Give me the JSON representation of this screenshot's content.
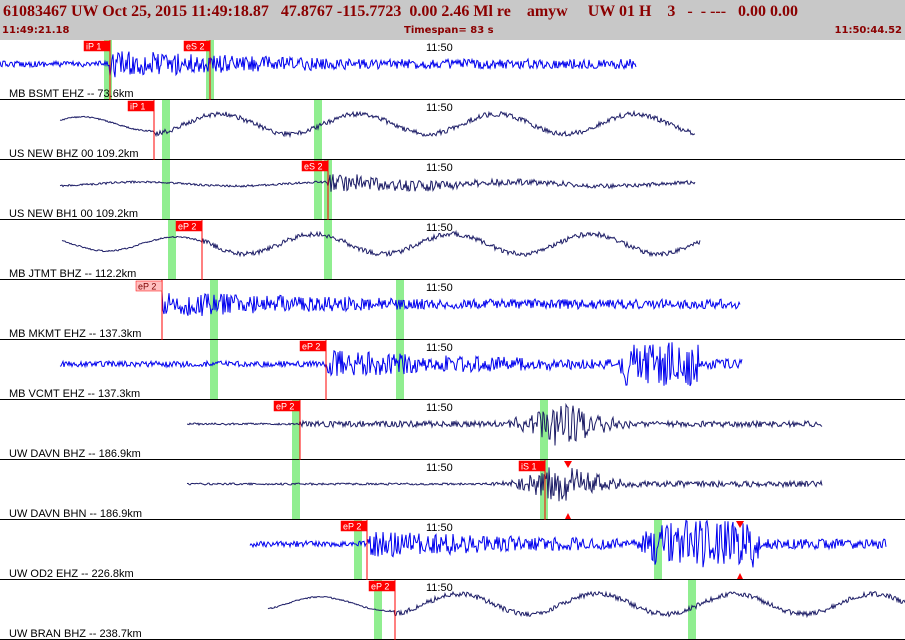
{
  "header": {
    "title": "61083467 UW Oct 25, 2015 11:49:18.87   47.8767 -115.7723  0.00 2.46 Ml re    amyw     UW 01 H    3   -  - ---   0.00 0.00",
    "start_time": "11:49:21.18",
    "timespan": "Timespan=  83 s",
    "end_time": "11:50:44.52"
  },
  "colors": {
    "trace_blue": "#0000ee",
    "trace_navy": "#1c1c66",
    "pick_red": "#ff0000",
    "pick_pink": "#ffc0c0",
    "window_green": "#90ee90",
    "header_bg": "#c8c8c8",
    "header_text": "#8b0000"
  },
  "panels": [
    {
      "label": "MB BSMT EHZ -- 73.6km",
      "time_mark": "11:50",
      "trace_color": "blue",
      "signal": "noisy",
      "picks": [
        {
          "label": "iP 1",
          "style": "red"
        },
        {
          "label": "eS 2",
          "style": "red"
        }
      ],
      "markers": []
    },
    {
      "label": "US NEW BHZ 00 109.2km",
      "time_mark": "11:50",
      "trace_color": "navy",
      "signal": "long-period",
      "picks": [
        {
          "label": "iP 1",
          "style": "red"
        }
      ],
      "markers": []
    },
    {
      "label": "US NEW BH1 00 109.2km",
      "time_mark": "11:50",
      "trace_color": "navy",
      "signal": "quiet",
      "picks": [
        {
          "label": "eS 2",
          "style": "red"
        }
      ],
      "markers": []
    },
    {
      "label": "MB JTMT BHZ -- 112.2km",
      "time_mark": "11:50",
      "trace_color": "navy",
      "signal": "long-period",
      "picks": [
        {
          "label": "eP 2",
          "style": "red"
        }
      ],
      "markers": []
    },
    {
      "label": "MB MKMT EHZ -- 137.3km",
      "time_mark": "11:50",
      "trace_color": "blue",
      "signal": "noisy",
      "picks": [
        {
          "label": "eP 2",
          "style": "pink"
        }
      ],
      "markers": []
    },
    {
      "label": "MB VCMT EHZ -- 137.3km",
      "time_mark": "11:50",
      "trace_color": "blue",
      "signal": "noisy",
      "picks": [
        {
          "label": "eP 2",
          "style": "red"
        }
      ],
      "markers": []
    },
    {
      "label": "UW DAVN BHZ -- 186.9km",
      "time_mark": "11:50",
      "trace_color": "navy",
      "signal": "burst",
      "picks": [
        {
          "label": "eP 2",
          "style": "red"
        }
      ],
      "markers": []
    },
    {
      "label": "UW DAVN BHN -- 186.9km",
      "time_mark": "11:50",
      "trace_color": "navy",
      "signal": "burst",
      "picks": [
        {
          "label": "iS 1",
          "style": "red"
        }
      ],
      "markers": [
        "triangle-marker"
      ]
    },
    {
      "label": "UW OD2 EHZ -- 226.8km",
      "time_mark": "11:50",
      "trace_color": "blue",
      "signal": "noisy",
      "picks": [
        {
          "label": "eP 2",
          "style": "red"
        }
      ],
      "markers": [
        "triangle-marker"
      ]
    },
    {
      "label": "UW BRAN BHZ -- 238.7km",
      "time_mark": "11:50",
      "trace_color": "navy",
      "signal": "long-period",
      "picks": [
        {
          "label": "eP 2",
          "style": "red"
        }
      ],
      "markers": []
    }
  ]
}
